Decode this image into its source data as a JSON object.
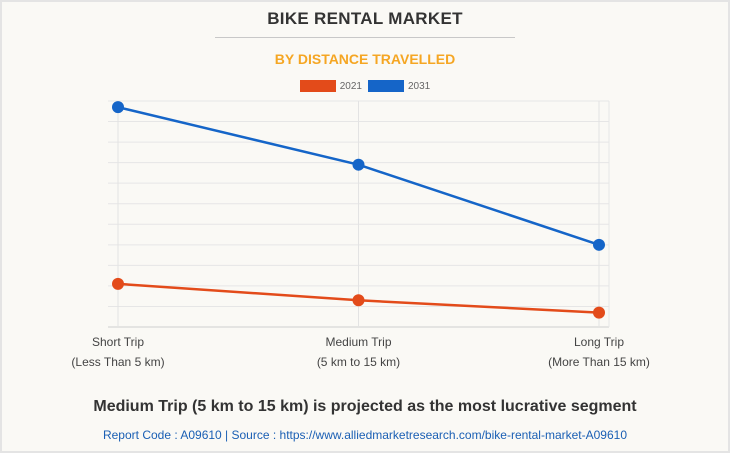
{
  "header": {
    "title": "BIKE RENTAL MARKET",
    "subtitle": "BY DISTANCE TRAVELLED"
  },
  "footer": {
    "note": "Medium Trip (5 km to 15 km) is projected as the most lucrative segment",
    "source": "Report Code : A09610  |  Source : https://www.alliedmarketresearch.com/bike-rental-market-A09610"
  },
  "colors": {
    "series_2021": "#e34b1a",
    "series_2031": "#1565c8",
    "title": "#333333",
    "subtitle": "#f5a623",
    "source_link": "#1a5fb4"
  },
  "chart_data": {
    "type": "line",
    "title": "BIKE RENTAL MARKET",
    "subtitle": "BY DISTANCE TRAVELLED",
    "xlabel": "",
    "ylabel": "",
    "categories": [
      [
        "Short Trip",
        "(Less Than 5 km)"
      ],
      [
        "Medium Trip",
        "(5 km to 15 km)"
      ],
      [
        "Long Trip",
        "(More Than 15 km)"
      ]
    ],
    "series": [
      {
        "name": "2021",
        "color": "#e34b1a",
        "values": [
          2.1,
          1.3,
          0.7
        ]
      },
      {
        "name": "2031",
        "color": "#1565c8",
        "values": [
          10.7,
          7.9,
          4.0
        ]
      }
    ],
    "ylim": [
      0,
      11
    ],
    "y_ticks_labeled": false,
    "grid": true,
    "legend": "top-center"
  }
}
